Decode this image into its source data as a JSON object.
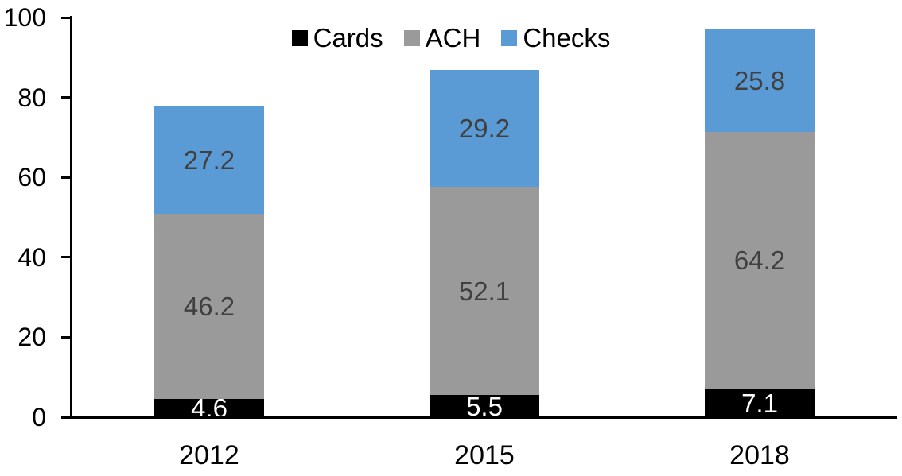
{
  "chart_data": {
    "type": "bar",
    "stacked": true,
    "title": "",
    "categories": [
      "2012",
      "2015",
      "2018"
    ],
    "series": [
      {
        "name": "Cards",
        "values": [
          4.6,
          5.5,
          7.1
        ],
        "color": "#000000",
        "label_color": "#ffffff"
      },
      {
        "name": "ACH",
        "values": [
          46.2,
          52.1,
          64.2
        ],
        "color": "#9a9a9a",
        "label_color": "#404040"
      },
      {
        "name": "Checks",
        "values": [
          27.2,
          29.2,
          25.8
        ],
        "color": "#5b9bd5",
        "label_color": "#404040"
      }
    ],
    "xlabel": "",
    "ylabel": "",
    "ylim": [
      0,
      100
    ],
    "yticks": [
      0,
      20,
      40,
      60,
      80,
      100
    ],
    "grid": false,
    "legend": {
      "position": "top",
      "entries": [
        "Cards",
        "ACH",
        "Checks"
      ]
    },
    "axis_color": "#000000",
    "tick_label_color": "#000000",
    "background_color": "#ffffff"
  }
}
